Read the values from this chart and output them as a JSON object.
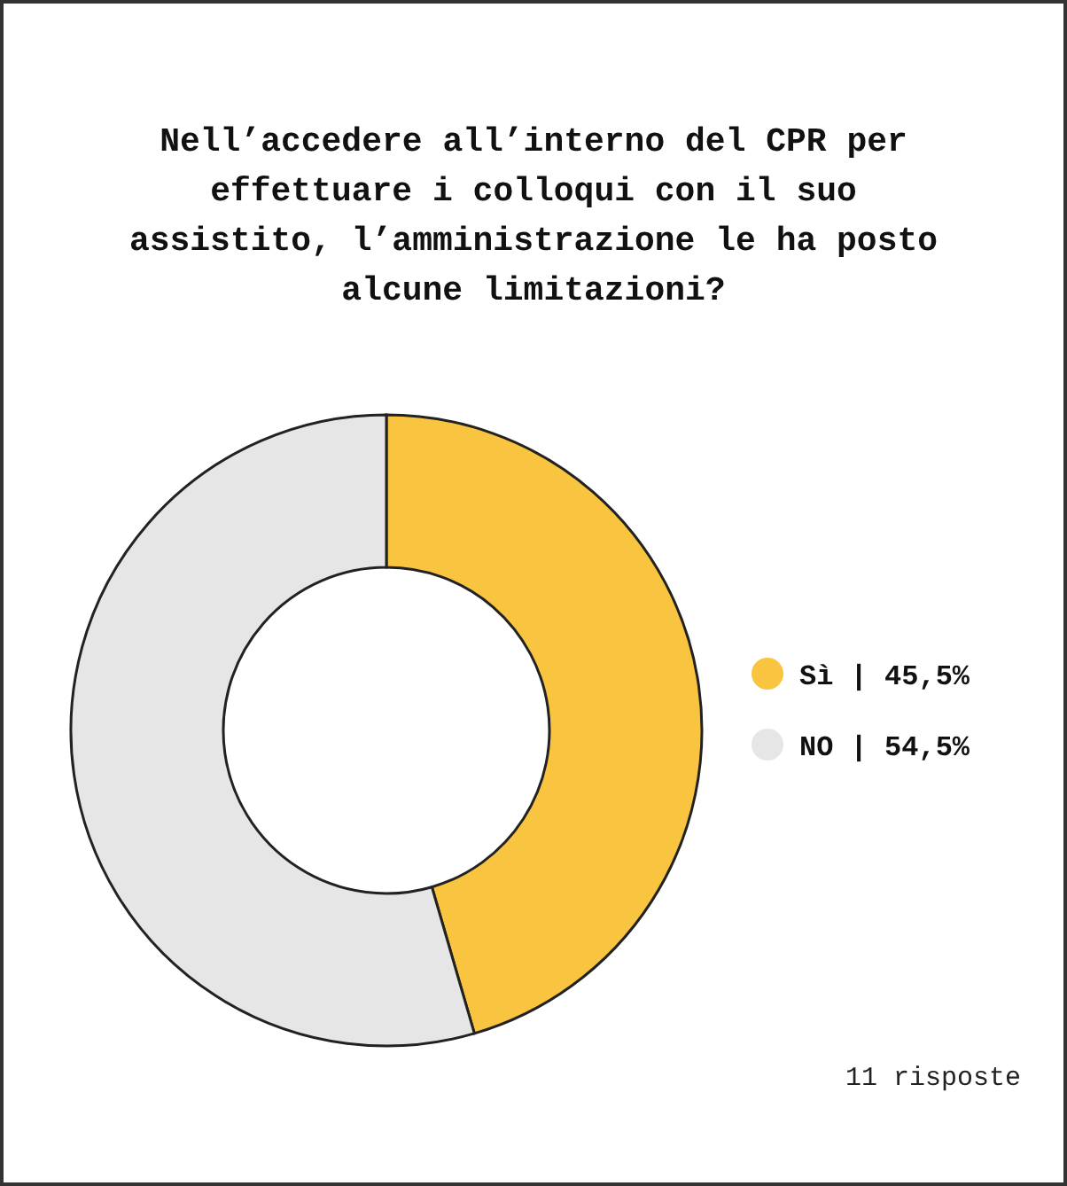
{
  "chart_data": {
    "type": "donut",
    "title": "Nell’accedere all’interno del CPR per effettuare i colloqui con il suo assistito, l’amministrazione le ha posto alcune limitazioni?",
    "categories": [
      "Sì | 45,5%",
      "NO | 54,5%"
    ],
    "values": [
      45.5,
      54.5
    ],
    "colors": [
      "#f9c440",
      "#e6e6e6"
    ],
    "legend": "right",
    "annotations": [
      "11 risposte"
    ]
  }
}
